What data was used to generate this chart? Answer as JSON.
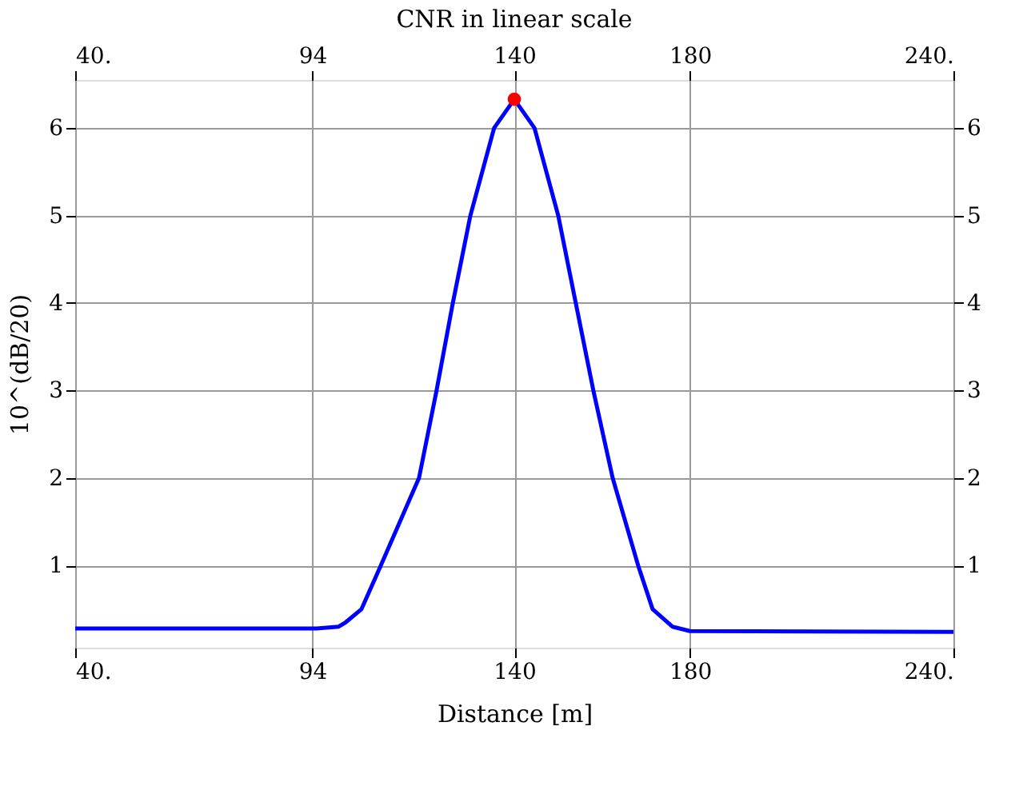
{
  "chart_data": {
    "type": "line",
    "title": "CNR in linear scale",
    "xlabel": "Distance [m]",
    "ylabel": "10^(dB/20)",
    "xlim": [
      40,
      240
    ],
    "xticks": [
      {
        "value": 40,
        "label": "40."
      },
      94,
      140,
      180,
      {
        "value": 240,
        "label": "240."
      }
    ],
    "x2lim": [
      40,
      240
    ],
    "x2ticks": [
      {
        "value": 40,
        "label": "40."
      },
      94,
      140,
      180,
      {
        "value": 240,
        "label": "240."
      }
    ],
    "ylim": [
      0.06,
      6.55
    ],
    "yticks": [
      1,
      2,
      3,
      4,
      5,
      6
    ],
    "y2lim": [
      0.06,
      6.55
    ],
    "y2ticks": [
      1,
      2,
      3,
      4,
      5,
      6
    ],
    "grid": true,
    "series": [
      {
        "color": "#0000ff",
        "x": [
          40,
          95,
          100,
          101.6,
          105.2,
          109.6,
          118.3,
          122.3,
          126,
          130,
          135.4,
          140,
          144.6,
          150,
          154,
          158,
          162.4,
          168.2,
          171.5,
          176,
          180,
          240
        ],
        "values": [
          0.28,
          0.28,
          0.3,
          0.35,
          0.5,
          1,
          2,
          3,
          4,
          5,
          6,
          6.33,
          6,
          5,
          4,
          3,
          2,
          1,
          0.5,
          0.3,
          0.25,
          0.24
        ]
      },
      {
        "type": "scatter",
        "color": "#ff0000",
        "marker": "circle",
        "x": [
          140
        ],
        "values": [
          6.33
        ]
      }
    ]
  }
}
